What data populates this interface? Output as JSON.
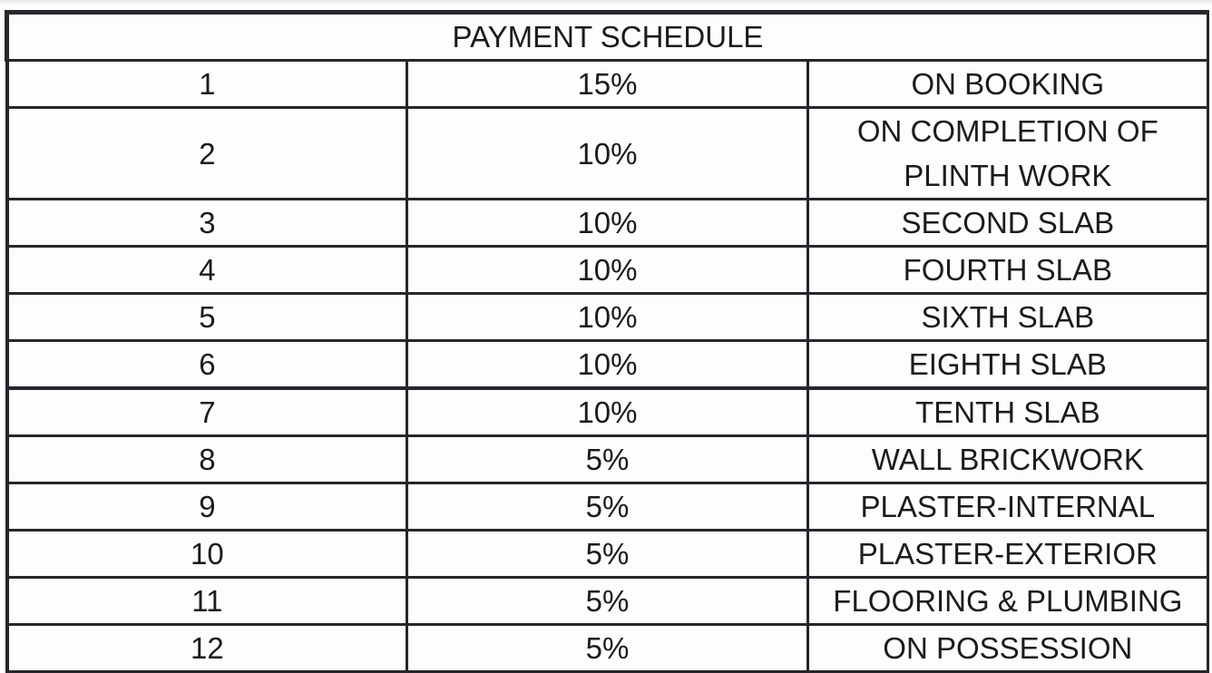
{
  "title": "PAYMENT SCHEDULE",
  "rows": [
    {
      "no": "1",
      "percent": "15%",
      "stage": "ON BOOKING"
    },
    {
      "no": "2",
      "percent": "10%",
      "stage": "ON COMPLETION OF PLINTH WORK"
    },
    {
      "no": "3",
      "percent": "10%",
      "stage": "SECOND SLAB"
    },
    {
      "no": "4",
      "percent": "10%",
      "stage": "FOURTH SLAB"
    },
    {
      "no": "5",
      "percent": "10%",
      "stage": "SIXTH SLAB"
    },
    {
      "no": "6",
      "percent": "10%",
      "stage": "EIGHTH SLAB"
    },
    {
      "no": "7",
      "percent": "10%",
      "stage": "TENTH SLAB"
    },
    {
      "no": "8",
      "percent": "5%",
      "stage": "WALL BRICKWORK"
    },
    {
      "no": "9",
      "percent": "5%",
      "stage": "PLASTER-INTERNAL"
    },
    {
      "no": "10",
      "percent": "5%",
      "stage": "PLASTER-EXTERIOR"
    },
    {
      "no": "11",
      "percent": "5%",
      "stage": "FLOORING & PLUMBING"
    },
    {
      "no": "12",
      "percent": "5%",
      "stage": "ON POSSESSION"
    }
  ]
}
